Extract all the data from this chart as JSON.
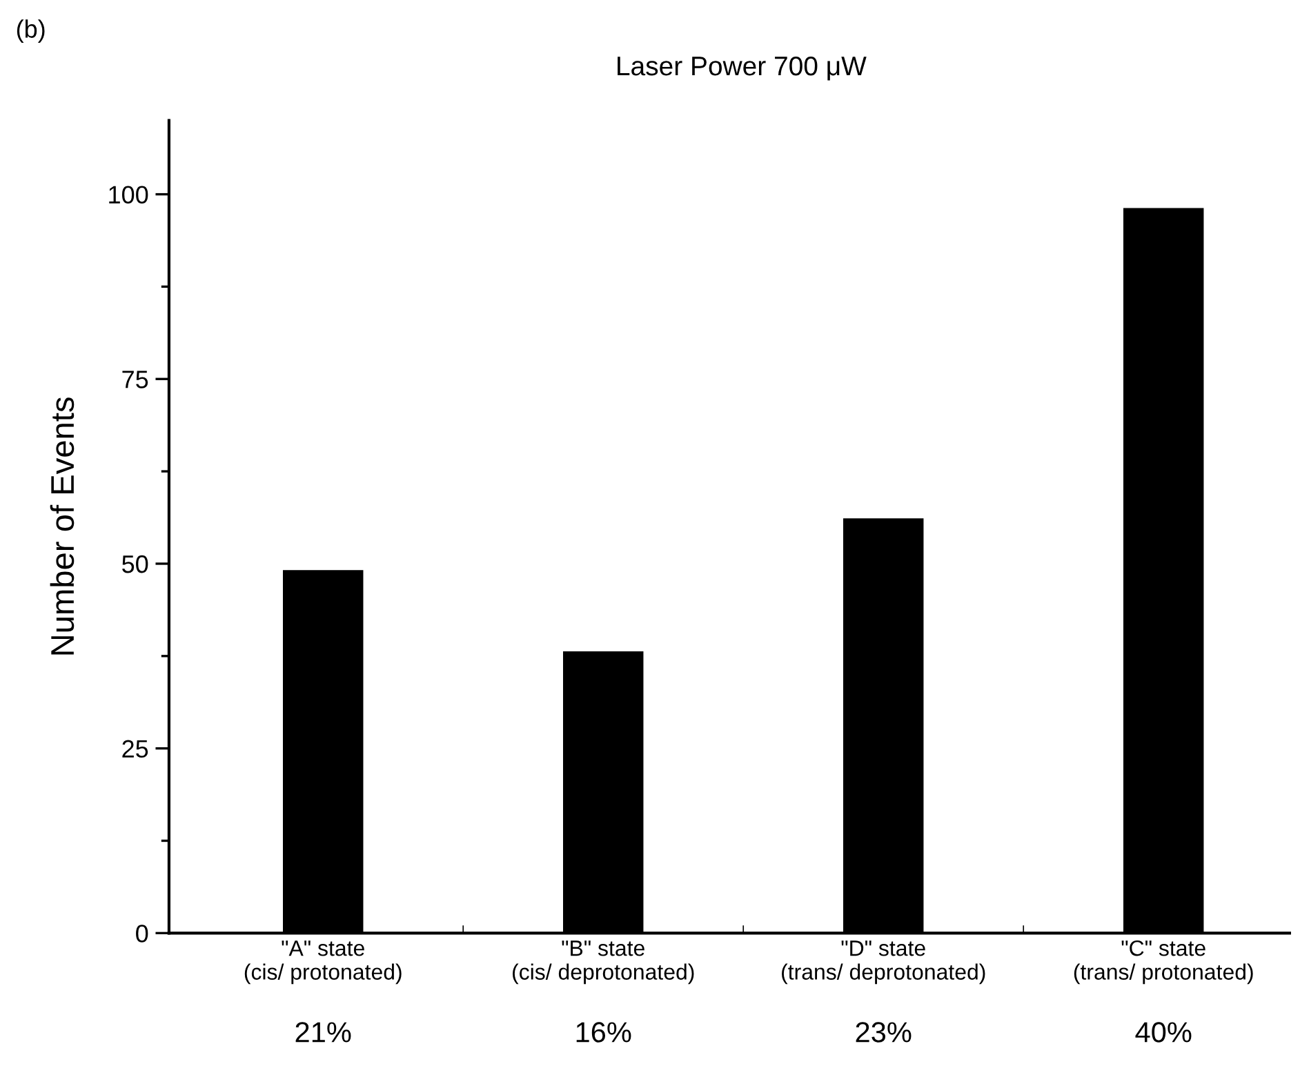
{
  "chart_data": {
    "type": "bar",
    "title": "Laser Power 700 μW",
    "ylabel": "Number of Events",
    "categories": [
      "\"A\" state\n(cis/ protonated)",
      "\"B\" state\n(cis/ deprotonated)",
      "\"D\" state\n(trans/ deprotonated)",
      "\"C\" state\n(trans/ protonated)"
    ],
    "values": [
      49,
      38,
      56,
      98
    ],
    "color": "#000000",
    "ylim": [
      0,
      110
    ],
    "yticks": [
      0,
      25,
      50,
      75,
      100
    ],
    "grid": false,
    "legend": false,
    "annotations": [
      "(b)",
      "21%",
      "16%",
      "23%",
      "40%"
    ]
  }
}
